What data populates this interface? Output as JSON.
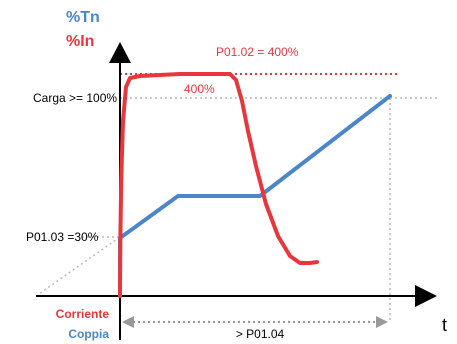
{
  "chart_data": {
    "type": "line",
    "ylabel_top": "%Tn",
    "ylabel_bottom": "%In",
    "xlabel": "t",
    "ref_line_label": "P01.02 = 400%",
    "peak_label": "400%",
    "y_tick_labels": {
      "load": "Carga >= 100%",
      "start": "P01.03 =30%"
    },
    "x_span_label": "> P01.04",
    "series_labels": {
      "current": "Corriente",
      "torque": "Coppia"
    },
    "series": [
      {
        "name": "Corriente",
        "color": "#e8373c",
        "points": [
          [
            0,
            0
          ],
          [
            0,
            8
          ],
          [
            0.4,
            60
          ],
          [
            1.2,
            115
          ],
          [
            3,
            175
          ],
          [
            6,
            209
          ],
          [
            10,
            218
          ],
          [
            20,
            220
          ],
          [
            60,
            222
          ],
          [
            110,
            222
          ],
          [
            116,
            216
          ],
          [
            122,
            195
          ],
          [
            128,
            165
          ],
          [
            136,
            130
          ],
          [
            146,
            92
          ],
          [
            158,
            60
          ],
          [
            170,
            40
          ],
          [
            180,
            33
          ],
          [
            190,
            33
          ],
          [
            197,
            34
          ]
        ]
      },
      {
        "name": "Coppia",
        "color": "#4a86c8",
        "points": [
          [
            0,
            0
          ],
          [
            0,
            58
          ],
          [
            58,
            100
          ],
          [
            140,
            100
          ],
          [
            270,
            200
          ]
        ]
      }
    ],
    "colors": {
      "current": "#e8373c",
      "torque": "#4a86c8",
      "axis": "#000000",
      "guide": "#bbbbbb",
      "ref_line": "#e8373c"
    }
  }
}
